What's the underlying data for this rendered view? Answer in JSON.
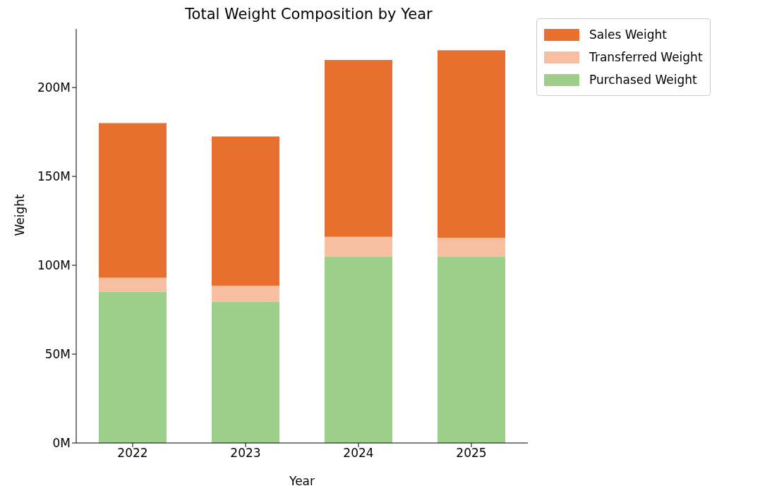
{
  "chart_data": {
    "type": "bar",
    "title": "Total Weight Composition by Year",
    "xlabel": "Year",
    "ylabel": "Weight",
    "categories": [
      "2022",
      "2023",
      "2024",
      "2025"
    ],
    "stacked": true,
    "series": [
      {
        "name": "Purchased Weight",
        "color": "#9ecf8a",
        "values": [
          85,
          79.5,
          105,
          105
        ]
      },
      {
        "name": "Transferred Weight",
        "color": "#f6bfa1",
        "values": [
          8,
          9,
          11,
          10.5
        ]
      },
      {
        "name": "Sales Weight",
        "color": "#e8702f",
        "values": [
          87,
          84,
          99.5,
          105.5
        ]
      }
    ],
    "ylim": [
      0,
      233
    ],
    "yticks": [
      {
        "value": 0,
        "label": "0M"
      },
      {
        "value": 50,
        "label": "50M"
      },
      {
        "value": 100,
        "label": "100M"
      },
      {
        "value": 150,
        "label": "150M"
      },
      {
        "value": 200,
        "label": "200M"
      }
    ],
    "grid": false,
    "legend": "top right"
  }
}
